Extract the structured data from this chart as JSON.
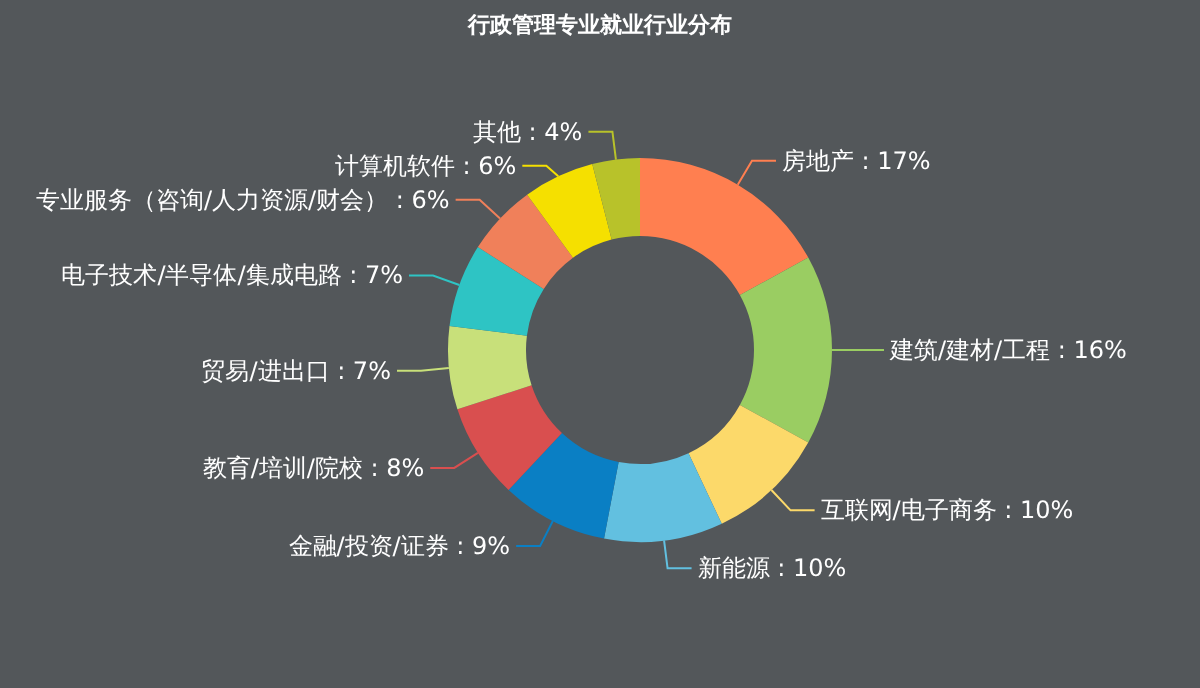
{
  "chart_data": {
    "type": "donut",
    "title": "行政管理专业就业行业分布",
    "categories": [
      "房地产",
      "建筑/建材/工程",
      "互联网/电子商务",
      "新能源",
      "金融/投资/证券",
      "教育/培训/院校",
      "贸易/进出口",
      "电子技术/半导体/集成电路",
      "专业服务（咨询/人力资源/财会）",
      "计算机软件",
      "其他"
    ],
    "values": [
      17,
      16,
      10,
      10,
      9,
      8,
      7,
      7,
      6,
      6,
      4
    ],
    "value_labels": [
      "17%",
      "16%",
      "10%",
      "10%",
      "9%",
      "8%",
      "7%",
      "7%",
      "6%",
      "6%",
      "4%"
    ],
    "colors": [
      "#ff7f50",
      "#9acd62",
      "#fcd96a",
      "#62c0e0",
      "#0a7fc4",
      "#d94f4f",
      "#c8e07a",
      "#2ec4c4",
      "#f0805a",
      "#f5e000",
      "#b8c22a"
    ]
  }
}
